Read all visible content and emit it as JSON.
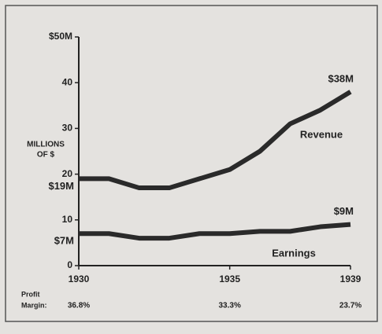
{
  "chart_data": {
    "type": "line",
    "ylabel_lines": [
      "MILLIONS",
      "OF $"
    ],
    "x": [
      1930,
      1931,
      1932,
      1933,
      1934,
      1935,
      1936,
      1937,
      1938,
      1939
    ],
    "series": [
      {
        "name": "Revenue",
        "color": "#2a2a2a",
        "values": [
          19,
          19,
          17,
          17,
          19,
          21,
          25,
          31,
          34,
          38
        ],
        "value_labels": [
          "$19M",
          null,
          null,
          null,
          null,
          null,
          null,
          null,
          null,
          "$38M"
        ]
      },
      {
        "name": "Earnings",
        "color": "#2a2a2a",
        "values": [
          7,
          7,
          6,
          6,
          7,
          7,
          7.5,
          7.5,
          8.5,
          9
        ],
        "value_labels": [
          "$7M",
          null,
          null,
          null,
          null,
          null,
          null,
          null,
          null,
          "$9M"
        ]
      }
    ],
    "xlim": [
      1930,
      1939
    ],
    "xticks": [
      1930,
      1935,
      1939
    ],
    "ylim": [
      0,
      50
    ],
    "yticks": [
      0,
      10,
      20,
      30,
      40,
      {
        "value": 50,
        "label": "$50M"
      }
    ],
    "grid": false,
    "profit_margin": {
      "label_lines": [
        "Profit",
        "Margin:"
      ],
      "x": [
        1930,
        1935,
        1939
      ],
      "values": [
        36.8,
        33.3,
        23.7
      ],
      "value_labels": [
        "36.8%",
        "33.3%",
        "23.7%"
      ]
    }
  }
}
